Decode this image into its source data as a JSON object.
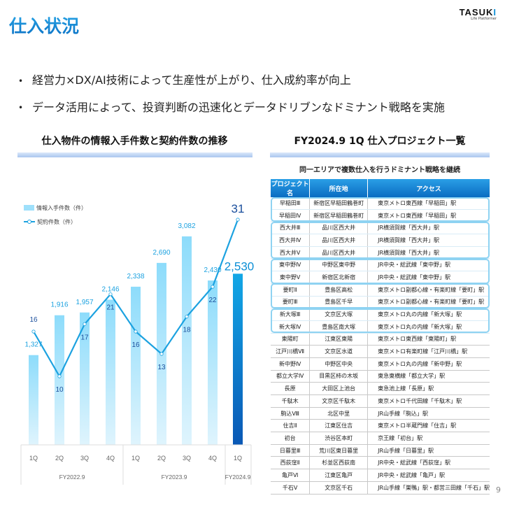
{
  "header": {
    "title": "仕入状況",
    "logo": {
      "main_prefix": "TASUK",
      "main_suffix": "I",
      "sub": "Life Platformer"
    }
  },
  "bullets": [
    "経営力×DX/AI技術によって生産性が上がり、仕入成約率が向上",
    "データ活用によって、投資判断の迅速化とデータドリブンなドミナント戦略を実施"
  ],
  "left_section": {
    "title": "仕入物件の情報入手件数と契約件数の推移"
  },
  "right_section": {
    "title": "FY2024.9 1Q 仕入プロジェクト一覧",
    "subtitle": "同一エリアで複数仕入を行うドミナント戦略を継続",
    "table": {
      "headers": [
        "プロジェクト名",
        "所在地",
        "アクセス"
      ],
      "rows": [
        [
          "早稲田Ⅲ",
          "新宿区早稲田鶴巻町",
          "東京メトロ東西線「早稲田」駅"
        ],
        [
          "早稲田Ⅳ",
          "新宿区早稲田鶴巻町",
          "東京メトロ東西線「早稲田」駅"
        ],
        [
          "西大井Ⅲ",
          "品川区西大井",
          "JR横須賀線「西大井」駅"
        ],
        [
          "西大井Ⅳ",
          "品川区西大井",
          "JR横須賀線「西大井」駅"
        ],
        [
          "西大井Ⅴ",
          "品川区西大井",
          "JR横須賀線「西大井」駅"
        ],
        [
          "東中野Ⅳ",
          "中野区東中野",
          "JR中央・総武線「東中野」駅"
        ],
        [
          "東中野Ⅴ",
          "新宿区北新宿",
          "JR中央・総武線「東中野」駅"
        ],
        [
          "要町Ⅱ",
          "豊島区高松",
          "東京メトロ副都心線・有楽町線「要町」駅"
        ],
        [
          "要町Ⅲ",
          "豊島区千早",
          "東京メトロ副都心線・有楽町線「要町」駅"
        ],
        [
          "新大塚Ⅲ",
          "文京区大塚",
          "東京メトロ丸の内線「新大塚」駅"
        ],
        [
          "新大塚Ⅳ",
          "豊島区南大塚",
          "東京メトロ丸の内線「新大塚」駅"
        ],
        [
          "東陽町",
          "江東区東陽",
          "東京メトロ東西線「東陽町」駅"
        ],
        [
          "江戸川橋Ⅶ",
          "文京区水道",
          "東京メトロ有楽町線「江戸川橋」駅"
        ],
        [
          "新中野Ⅳ",
          "中野区中央",
          "東京メトロ丸の内線「新中野」駅"
        ],
        [
          "都立大学Ⅳ",
          "目黒区柿の木坂",
          "東急東横線「都立大学」駅"
        ],
        [
          "長原",
          "大田区上池台",
          "東急池上線「長原」駅"
        ],
        [
          "千駄木",
          "文京区千駄木",
          "東京メトロ千代田線「千駄木」駅"
        ],
        [
          "駒込Ⅷ",
          "北区中里",
          "JR山手線「駒込」駅"
        ],
        [
          "住吉Ⅱ",
          "江東区住吉",
          "東京メトロ半蔵門線「住吉」駅"
        ],
        [
          "初台",
          "渋谷区本町",
          "京王線「初台」駅"
        ],
        [
          "日暮里Ⅲ",
          "荒川区東日暮里",
          "JR山手線「日暮里」駅"
        ],
        [
          "西荻窪Ⅱ",
          "杉並区西荻南",
          "JR中央・総武線「西荻窪」駅"
        ],
        [
          "亀戸Ⅵ",
          "江東区亀戸",
          "JR中央・総武線「亀戸」駅"
        ],
        [
          "千石Ⅴ",
          "文京区千石",
          "JR山手線「巣鴨」駅・都営三田線「千石」駅"
        ]
      ],
      "groups": [
        [
          0,
          1
        ],
        [
          2,
          4
        ],
        [
          5,
          6
        ],
        [
          7,
          8
        ],
        [
          9,
          10
        ]
      ]
    }
  },
  "chart_data": {
    "type": "bar",
    "title": "仕入物件の情報入手件数と契約件数の推移",
    "categories": [
      "1Q",
      "2Q",
      "3Q",
      "4Q",
      "1Q",
      "2Q",
      "3Q",
      "4Q",
      "1Q"
    ],
    "groups": [
      {
        "label": "FY2022.9",
        "span": 4
      },
      {
        "label": "FY2023.9",
        "span": 4
      },
      {
        "label": "FY2024.9",
        "span": 1
      }
    ],
    "series": [
      {
        "name": "情報入手件数（件）",
        "type": "bar",
        "values": [
          1327,
          1916,
          1957,
          2146,
          2338,
          2690,
          3082,
          2430,
          2530
        ]
      },
      {
        "name": "契約件数（件）",
        "type": "line",
        "values": [
          16,
          10,
          17,
          21,
          16,
          13,
          18,
          22,
          31
        ]
      }
    ],
    "legend_position": "upper-left",
    "grid": false,
    "colors": {
      "bar": "#9ee0fb",
      "bar_highlight": "#0a6cc2",
      "line": "#1ca2e0",
      "bar_label": "#1ca2e0",
      "line_label": "#1a4e9c"
    }
  },
  "page_number": "9"
}
